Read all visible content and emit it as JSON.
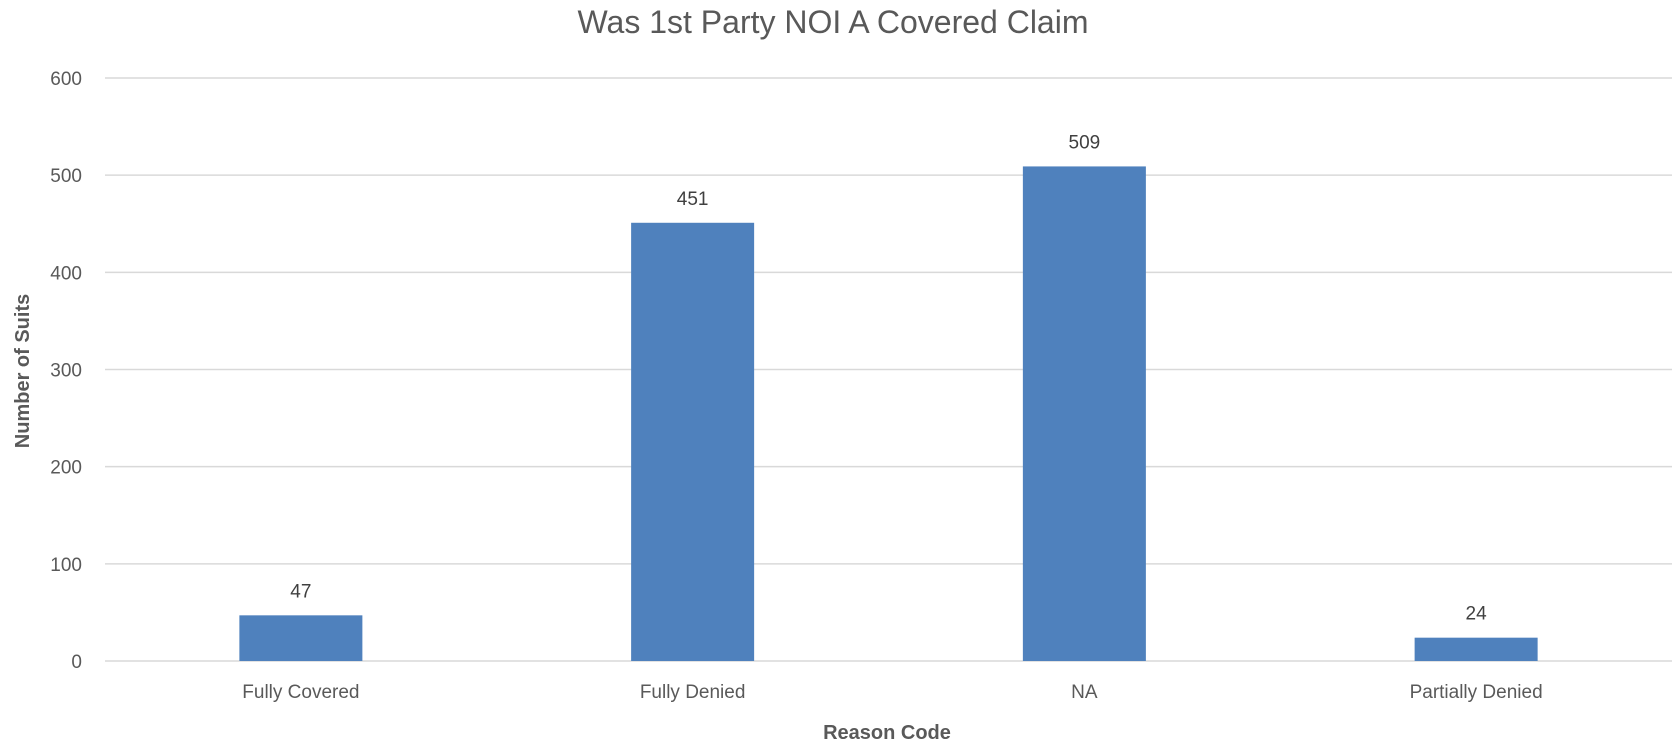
{
  "chart_data": {
    "type": "bar",
    "title": "Was 1st Party NOI A Covered Claim",
    "xlabel": "Reason Code",
    "ylabel": "Number of Suits",
    "categories": [
      "Fully Covered",
      "Fully Denied",
      "NA",
      "Partially Denied"
    ],
    "values": [
      47,
      451,
      509,
      24
    ],
    "data_labels": [
      "47",
      "451",
      "509",
      "24"
    ],
    "ylim": [
      0,
      600
    ],
    "yticks": [
      0,
      100,
      200,
      300,
      400,
      500,
      600
    ],
    "ytick_labels": [
      "0",
      "100",
      "200",
      "300",
      "400",
      "500",
      "600"
    ],
    "grid": true,
    "legend": "none",
    "bar_color": "#4F81BD"
  }
}
